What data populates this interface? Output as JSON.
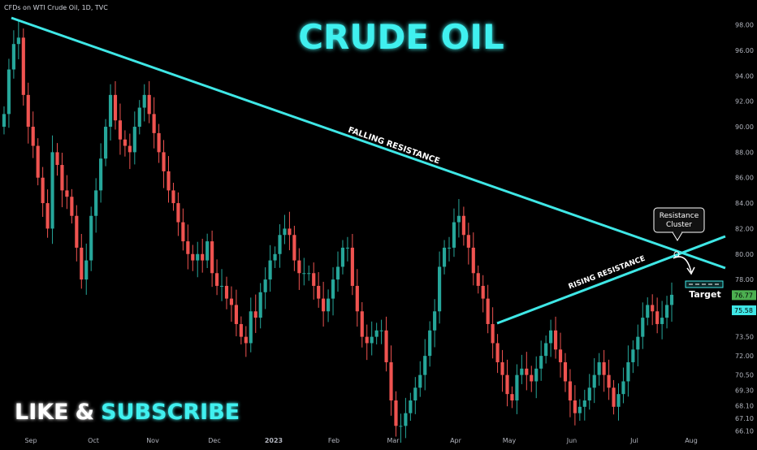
{
  "header": {
    "symbol_label": "CFDs on WTI Crude Oil, 1D, TVC"
  },
  "title": "CRUDE OIL",
  "cta": {
    "like": "LIKE",
    "amp": "&",
    "subscribe": "SUBSCRIBE"
  },
  "annotations": {
    "falling": "FALLING RESISTANCE",
    "rising": "RISING RESISTANCE",
    "cluster_line1": "Resistance",
    "cluster_line2": "Cluster",
    "target": "Target"
  },
  "colors": {
    "background": "#000000",
    "up": "#26a69a",
    "down": "#ef5350",
    "trendline": "#3fe7e6",
    "title": "#3ff0ef"
  },
  "chart_data": {
    "type": "candlestick",
    "ylim": [
      65.5,
      99
    ],
    "y_ticks": [
      "98.00",
      "96.00",
      "94.00",
      "92.00",
      "90.00",
      "88.00",
      "86.00",
      "84.00",
      "82.00",
      "80.00",
      "78.00",
      "76.70",
      "75.58",
      "73.50",
      "72.00",
      "70.50",
      "69.30",
      "68.10",
      "67.10",
      "66.10"
    ],
    "x_ticks": [
      "Sep",
      "Oct",
      "Nov",
      "Dec",
      "2023",
      "Feb",
      "Mar",
      "Apr",
      "May",
      "Jun",
      "Jul",
      "Aug"
    ],
    "price_tags": [
      {
        "value": 76.77,
        "label": "76.77",
        "color": "#4caf50"
      },
      {
        "value": 75.58,
        "label": "75.58",
        "color": "#3fe7e6"
      }
    ],
    "closes": [
      91.0,
      94.5,
      96.5,
      97.0,
      92.5,
      90.0,
      88.5,
      86.0,
      84.0,
      82.0,
      88.0,
      87.0,
      85.0,
      84.5,
      83.0,
      80.5,
      78.0,
      79.5,
      83.0,
      85.0,
      87.5,
      90.0,
      92.5,
      90.5,
      89.0,
      88.5,
      88.0,
      90.0,
      91.5,
      92.5,
      91.0,
      89.5,
      88.0,
      86.5,
      85.0,
      84.0,
      82.5,
      81.0,
      80.0,
      79.5,
      80.0,
      79.5,
      81.0,
      78.5,
      77.5,
      77.5,
      76.5,
      76.0,
      74.5,
      73.5,
      73.0,
      75.5,
      75.0,
      77.0,
      78.0,
      79.5,
      80.0,
      81.5,
      82.0,
      81.5,
      79.5,
      78.5,
      78.5,
      78.5,
      77.5,
      76.5,
      75.5,
      76.5,
      78.0,
      79.0,
      80.5,
      80.5,
      77.5,
      75.5,
      73.5,
      73.0,
      73.5,
      74.0,
      74.0,
      71.5,
      68.5,
      66.5,
      66.5,
      67.5,
      68.5,
      69.5,
      70.5,
      72.0,
      74.0,
      75.5,
      79.0,
      80.5,
      80.5,
      82.5,
      83.0,
      81.5,
      80.5,
      78.5,
      77.5,
      76.5,
      74.5,
      73.0,
      71.5,
      70.5,
      69.0,
      68.5,
      70.5,
      71.0,
      70.5,
      70.0,
      71.0,
      72.0,
      73.0,
      74.0,
      72.5,
      71.5,
      70.0,
      68.5,
      67.5,
      68.0,
      68.5,
      69.5,
      70.5,
      71.5,
      70.5,
      69.5,
      68.0,
      69.0,
      70.0,
      71.5,
      72.5,
      73.5,
      75.0,
      76.0,
      75.5,
      74.5,
      75.0,
      76.0,
      76.8
    ]
  }
}
